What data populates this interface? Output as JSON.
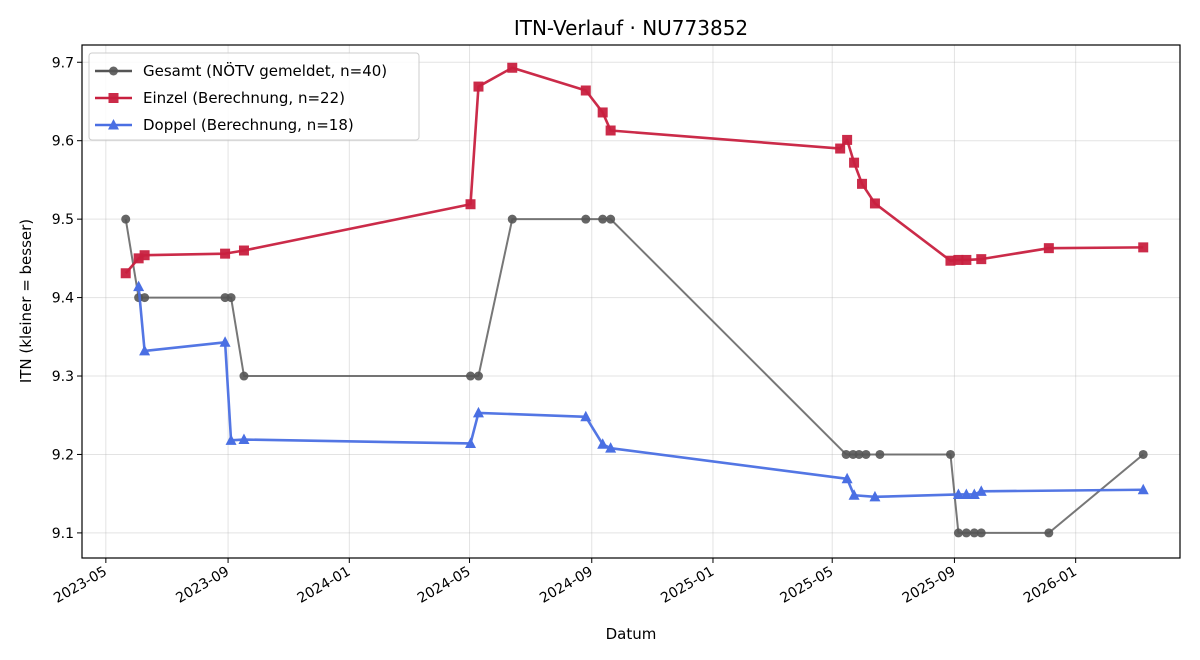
{
  "chart_data": {
    "type": "line",
    "title": "ITN-Verlauf · NU773852",
    "xlabel": "Datum",
    "ylabel": "ITN  (kleiner = besser)",
    "x_is_date": true,
    "xlim": [
      "2023-04-07",
      "2026-04-16"
    ],
    "ylim": [
      9.068,
      9.722
    ],
    "x_ticks": [
      "2023-05",
      "2023-09",
      "2024-01",
      "2024-05",
      "2024-09",
      "2025-01",
      "2025-05",
      "2025-09",
      "2026-01"
    ],
    "x_tick_dates": [
      "2023-05-01",
      "2023-09-01",
      "2024-01-01",
      "2024-05-01",
      "2024-09-01",
      "2025-01-01",
      "2025-05-01",
      "2025-09-01",
      "2026-01-01"
    ],
    "y_ticks": [
      9.1,
      9.2,
      9.3,
      9.4,
      9.5,
      9.6,
      9.7
    ],
    "y_tick_labels": [
      "9.1",
      "9.2",
      "9.3",
      "9.4",
      "9.5",
      "9.6",
      "9.7"
    ],
    "grid": true,
    "legend_position": "upper-left",
    "series": [
      {
        "name": "Gesamt (NÖTV gemeldet, n=40)",
        "color": "#555555",
        "marker": "circle",
        "points": [
          [
            "2023-05-21",
            9.5
          ],
          [
            "2023-06-03",
            9.4
          ],
          [
            "2023-06-09",
            9.4
          ],
          [
            "2023-08-29",
            9.4
          ],
          [
            "2023-09-04",
            9.4
          ],
          [
            "2023-09-17",
            9.3
          ],
          [
            "2024-05-02",
            9.3
          ],
          [
            "2024-05-10",
            9.3
          ],
          [
            "2024-06-13",
            9.5
          ],
          [
            "2024-08-26",
            9.5
          ],
          [
            "2024-09-12",
            9.5
          ],
          [
            "2024-09-20",
            9.5
          ],
          [
            "2025-05-15",
            9.2
          ],
          [
            "2025-05-22",
            9.2
          ],
          [
            "2025-05-28",
            9.2
          ],
          [
            "2025-06-04",
            9.2
          ],
          [
            "2025-06-18",
            9.2
          ],
          [
            "2025-08-28",
            9.2
          ],
          [
            "2025-09-05",
            9.1
          ],
          [
            "2025-09-13",
            9.1
          ],
          [
            "2025-09-21",
            9.1
          ],
          [
            "2025-09-28",
            9.1
          ],
          [
            "2025-12-05",
            9.1
          ],
          [
            "2026-03-10",
            9.2
          ]
        ]
      },
      {
        "name": "Einzel (Berechnung, n=22)",
        "color": "#c8203f",
        "marker": "square",
        "points": [
          [
            "2023-05-21",
            9.431
          ],
          [
            "2023-06-03",
            9.45
          ],
          [
            "2023-06-09",
            9.454
          ],
          [
            "2023-08-29",
            9.456
          ],
          [
            "2023-09-17",
            9.46
          ],
          [
            "2024-05-02",
            9.519
          ],
          [
            "2024-05-10",
            9.669
          ],
          [
            "2024-06-13",
            9.693
          ],
          [
            "2024-08-26",
            9.664
          ],
          [
            "2024-09-12",
            9.636
          ],
          [
            "2024-09-20",
            9.613
          ],
          [
            "2025-05-09",
            9.59
          ],
          [
            "2025-05-16",
            9.601
          ],
          [
            "2025-05-23",
            9.572
          ],
          [
            "2025-05-31",
            9.545
          ],
          [
            "2025-06-13",
            9.52
          ],
          [
            "2025-08-28",
            9.447
          ],
          [
            "2025-09-05",
            9.448
          ],
          [
            "2025-09-13",
            9.448
          ],
          [
            "2025-09-28",
            9.449
          ],
          [
            "2025-12-05",
            9.463
          ],
          [
            "2026-03-10",
            9.464
          ]
        ]
      },
      {
        "name": "Doppel (Berechnung, n=18)",
        "color": "#4a6fe3",
        "marker": "triangle",
        "points": [
          [
            "2023-06-03",
            9.414
          ],
          [
            "2023-06-09",
            9.332
          ],
          [
            "2023-08-29",
            9.343
          ],
          [
            "2023-09-04",
            9.218
          ],
          [
            "2023-09-17",
            9.219
          ],
          [
            "2024-05-02",
            9.214
          ],
          [
            "2024-05-10",
            9.253
          ],
          [
            "2024-08-26",
            9.248
          ],
          [
            "2024-09-12",
            9.213
          ],
          [
            "2024-09-20",
            9.208
          ],
          [
            "2025-05-16",
            9.169
          ],
          [
            "2025-05-23",
            9.148
          ],
          [
            "2025-06-13",
            9.146
          ],
          [
            "2025-09-05",
            9.149
          ],
          [
            "2025-09-13",
            9.149
          ],
          [
            "2025-09-21",
            9.149
          ],
          [
            "2025-09-28",
            9.153
          ],
          [
            "2026-03-10",
            9.155
          ]
        ]
      }
    ]
  }
}
